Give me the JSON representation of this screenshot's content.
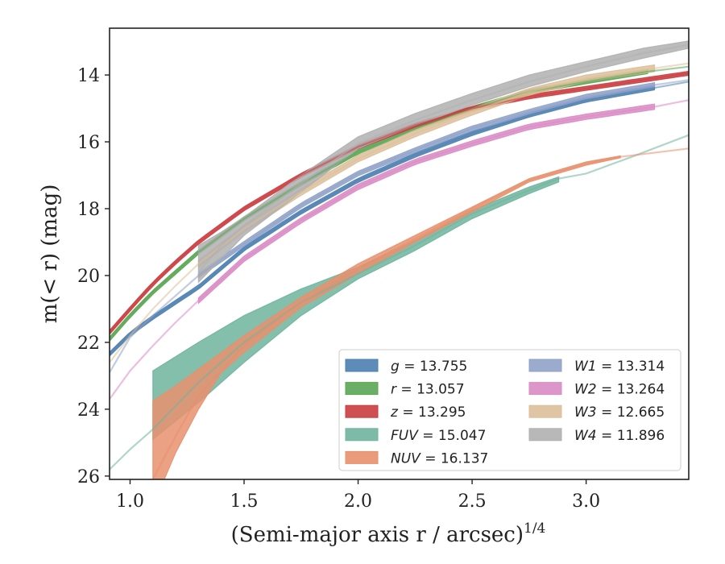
{
  "chart_data": {
    "type": "line",
    "xlabel": "(Semi-major axis r / arcsec)",
    "xlabel_exponent": "1/4",
    "ylabel": "m(< r) (mag)",
    "xlim": [
      0.91,
      3.45
    ],
    "ylim": [
      26.1,
      12.6
    ],
    "y_inverted": true,
    "grid": false,
    "legend_placement": "lower-right",
    "x_ticks": [
      "1.0",
      "1.5",
      "2.0",
      "2.5",
      "3.0"
    ],
    "x_tick_values": [
      1.0,
      1.5,
      2.0,
      2.5,
      3.0
    ],
    "y_ticks": [
      "14",
      "16",
      "18",
      "20",
      "22",
      "24",
      "26"
    ],
    "y_tick_values": [
      14,
      16,
      18,
      20,
      22,
      24,
      26
    ],
    "series": [
      {
        "name": "g",
        "value": "13.755",
        "color": "#4c7fb0",
        "points": [
          [
            0.91,
            22.35
          ],
          [
            1.0,
            21.75
          ],
          [
            1.1,
            21.25
          ],
          [
            1.2,
            20.8
          ],
          [
            1.3,
            20.35
          ],
          [
            1.5,
            19.2
          ],
          [
            1.75,
            18.1
          ],
          [
            2.0,
            17.15
          ],
          [
            2.25,
            16.4
          ],
          [
            2.5,
            15.75
          ],
          [
            2.75,
            15.2
          ],
          [
            3.0,
            14.75
          ],
          [
            3.45,
            14.2
          ]
        ],
        "band_start_x": 0.91,
        "band_end_x": 3.3,
        "band_halfwidth": 0.06
      },
      {
        "name": "r",
        "value": "13.057",
        "color": "#5aa654",
        "points": [
          [
            0.91,
            21.9
          ],
          [
            1.0,
            21.2
          ],
          [
            1.1,
            20.5
          ],
          [
            1.2,
            19.9
          ],
          [
            1.3,
            19.3
          ],
          [
            1.5,
            18.3
          ],
          [
            1.75,
            17.25
          ],
          [
            2.0,
            16.3
          ],
          [
            2.25,
            15.6
          ],
          [
            2.5,
            15.0
          ],
          [
            2.75,
            14.5
          ],
          [
            3.0,
            14.2
          ],
          [
            3.27,
            13.9
          ],
          [
            3.45,
            13.75
          ]
        ],
        "band_start_x": 0.91,
        "band_end_x": 3.27,
        "band_halfwidth": 0.06
      },
      {
        "name": "z",
        "value": "13.295",
        "color": "#cb3c3f",
        "points": [
          [
            0.91,
            21.7
          ],
          [
            1.0,
            21.0
          ],
          [
            1.1,
            20.25
          ],
          [
            1.2,
            19.6
          ],
          [
            1.3,
            19.0
          ],
          [
            1.5,
            18.0
          ],
          [
            1.75,
            17.0
          ],
          [
            2.0,
            16.15
          ],
          [
            2.25,
            15.5
          ],
          [
            2.5,
            15.0
          ],
          [
            2.75,
            14.65
          ],
          [
            3.0,
            14.4
          ],
          [
            3.45,
            13.95
          ]
        ],
        "band_start_x": 0.91,
        "band_end_x": 3.45,
        "band_halfwidth": 0.06
      },
      {
        "name": "FUV",
        "value": "15.047",
        "color": "#6fb49e",
        "points": [
          [
            0.91,
            25.8
          ],
          [
            1.0,
            25.2
          ],
          [
            1.1,
            24.6
          ],
          [
            1.2,
            23.9
          ],
          [
            1.3,
            23.2
          ],
          [
            1.5,
            22.0
          ],
          [
            1.75,
            20.8
          ],
          [
            2.0,
            19.95
          ],
          [
            2.25,
            19.1
          ],
          [
            2.5,
            18.15
          ],
          [
            2.75,
            17.45
          ],
          [
            2.88,
            17.1
          ],
          [
            3.0,
            16.95
          ],
          [
            3.2,
            16.45
          ],
          [
            3.45,
            15.8
          ]
        ],
        "band_start_x": 1.1,
        "band_end_x": 2.88,
        "band_upper": [
          [
            1.1,
            22.85
          ],
          [
            1.3,
            22.0
          ],
          [
            1.5,
            21.2
          ],
          [
            1.75,
            20.4
          ],
          [
            2.0,
            19.75
          ],
          [
            2.25,
            18.95
          ],
          [
            2.5,
            18.05
          ],
          [
            2.75,
            17.35
          ],
          [
            2.88,
            17.05
          ]
        ],
        "band_lower": [
          [
            1.1,
            24.9
          ],
          [
            1.3,
            23.8
          ],
          [
            1.5,
            22.6
          ],
          [
            1.75,
            21.2
          ],
          [
            2.0,
            20.1
          ],
          [
            2.25,
            19.25
          ],
          [
            2.5,
            18.3
          ],
          [
            2.75,
            17.55
          ],
          [
            2.88,
            17.2
          ]
        ]
      },
      {
        "name": "NUV",
        "value": "16.137",
        "color": "#e8906d",
        "points": [
          [
            1.1,
            26.1
          ],
          [
            1.2,
            24.8
          ],
          [
            1.3,
            23.6
          ],
          [
            1.5,
            22.1
          ],
          [
            1.75,
            20.8
          ],
          [
            2.0,
            19.8
          ],
          [
            2.25,
            18.9
          ],
          [
            2.5,
            18.0
          ],
          [
            2.75,
            17.15
          ],
          [
            3.0,
            16.65
          ],
          [
            3.15,
            16.45
          ],
          [
            3.45,
            16.2
          ]
        ],
        "band_start_x": 1.1,
        "band_end_x": 3.15,
        "band_upper": [
          [
            1.1,
            23.75
          ],
          [
            1.2,
            23.3
          ],
          [
            1.3,
            22.8
          ],
          [
            1.5,
            21.8
          ],
          [
            1.75,
            20.65
          ],
          [
            2.0,
            19.65
          ],
          [
            2.25,
            18.8
          ],
          [
            2.5,
            17.95
          ],
          [
            2.75,
            17.1
          ],
          [
            3.0,
            16.6
          ],
          [
            3.15,
            16.42
          ]
        ],
        "band_lower": [
          [
            1.1,
            26.1
          ],
          [
            1.15,
            26.1
          ],
          [
            1.2,
            25.3
          ],
          [
            1.3,
            24.0
          ],
          [
            1.4,
            22.9
          ],
          [
            1.5,
            22.3
          ],
          [
            1.75,
            20.95
          ],
          [
            2.0,
            19.95
          ],
          [
            2.25,
            19.0
          ],
          [
            2.5,
            18.1
          ],
          [
            2.75,
            17.2
          ],
          [
            3.0,
            16.7
          ],
          [
            3.15,
            16.48
          ]
        ]
      },
      {
        "name": "W1",
        "value": "13.314",
        "color": "#8fa2c8",
        "points": [
          [
            0.91,
            22.9
          ],
          [
            1.0,
            21.85
          ],
          [
            1.1,
            21.2
          ],
          [
            1.2,
            20.6
          ],
          [
            1.3,
            20.0
          ],
          [
            1.5,
            19.05
          ],
          [
            1.75,
            17.9
          ],
          [
            2.0,
            16.95
          ],
          [
            2.25,
            16.25
          ],
          [
            2.5,
            15.6
          ],
          [
            2.75,
            15.1
          ],
          [
            3.0,
            14.65
          ],
          [
            3.3,
            14.3
          ],
          [
            3.45,
            14.15
          ]
        ],
        "band_start_x": 1.3,
        "band_end_x": 3.3,
        "band_halfwidth": 0.07
      },
      {
        "name": "W2",
        "value": "13.264",
        "color": "#d98bc4",
        "points": [
          [
            0.91,
            23.7
          ],
          [
            1.0,
            22.85
          ],
          [
            1.1,
            22.1
          ],
          [
            1.2,
            21.4
          ],
          [
            1.3,
            20.75
          ],
          [
            1.5,
            19.5
          ],
          [
            1.75,
            18.35
          ],
          [
            2.0,
            17.35
          ],
          [
            2.25,
            16.6
          ],
          [
            2.5,
            16.05
          ],
          [
            2.75,
            15.55
          ],
          [
            3.0,
            15.25
          ],
          [
            3.3,
            14.95
          ],
          [
            3.45,
            14.75
          ]
        ],
        "band_start_x": 1.3,
        "band_end_x": 3.3,
        "band_halfwidth": 0.08
      },
      {
        "name": "W3",
        "value": "12.665",
        "color": "#dcbf9a",
        "points": [
          [
            0.91,
            22.6
          ],
          [
            1.0,
            21.8
          ],
          [
            1.1,
            21.0
          ],
          [
            1.2,
            20.3
          ],
          [
            1.3,
            19.65
          ],
          [
            1.5,
            18.6
          ],
          [
            1.75,
            17.5
          ],
          [
            2.0,
            16.5
          ],
          [
            2.25,
            15.75
          ],
          [
            2.5,
            15.1
          ],
          [
            2.75,
            14.5
          ],
          [
            3.0,
            14.1
          ],
          [
            3.3,
            13.8
          ],
          [
            3.45,
            13.65
          ]
        ],
        "band_start_x": 1.3,
        "band_end_x": 3.3,
        "band_halfwidth": 0.1
      },
      {
        "name": "W4",
        "value": "11.896",
        "color": "#b0b0b0",
        "points": [
          [
            1.3,
            19.9
          ],
          [
            1.4,
            19.1
          ],
          [
            1.5,
            18.5
          ],
          [
            1.75,
            17.25
          ],
          [
            2.0,
            16.05
          ],
          [
            2.25,
            15.35
          ],
          [
            2.5,
            14.75
          ],
          [
            2.75,
            14.2
          ],
          [
            3.0,
            13.75
          ],
          [
            3.25,
            13.35
          ],
          [
            3.45,
            13.1
          ]
        ],
        "band_start_x": 1.3,
        "band_end_x": 3.45,
        "band_upper": [
          [
            1.3,
            19.1
          ],
          [
            1.4,
            18.7
          ],
          [
            1.5,
            18.25
          ],
          [
            1.75,
            17.0
          ],
          [
            2.0,
            15.85
          ],
          [
            2.25,
            15.15
          ],
          [
            2.5,
            14.55
          ],
          [
            2.75,
            14.0
          ],
          [
            3.0,
            13.6
          ],
          [
            3.25,
            13.2
          ],
          [
            3.45,
            12.98
          ]
        ],
        "band_lower": [
          [
            1.3,
            20.2
          ],
          [
            1.4,
            19.5
          ],
          [
            1.5,
            18.8
          ],
          [
            1.75,
            17.5
          ],
          [
            2.0,
            16.2
          ],
          [
            2.25,
            15.5
          ],
          [
            2.5,
            14.9
          ],
          [
            2.75,
            14.35
          ],
          [
            3.0,
            13.9
          ],
          [
            3.25,
            13.5
          ],
          [
            3.45,
            13.2
          ]
        ]
      }
    ]
  }
}
